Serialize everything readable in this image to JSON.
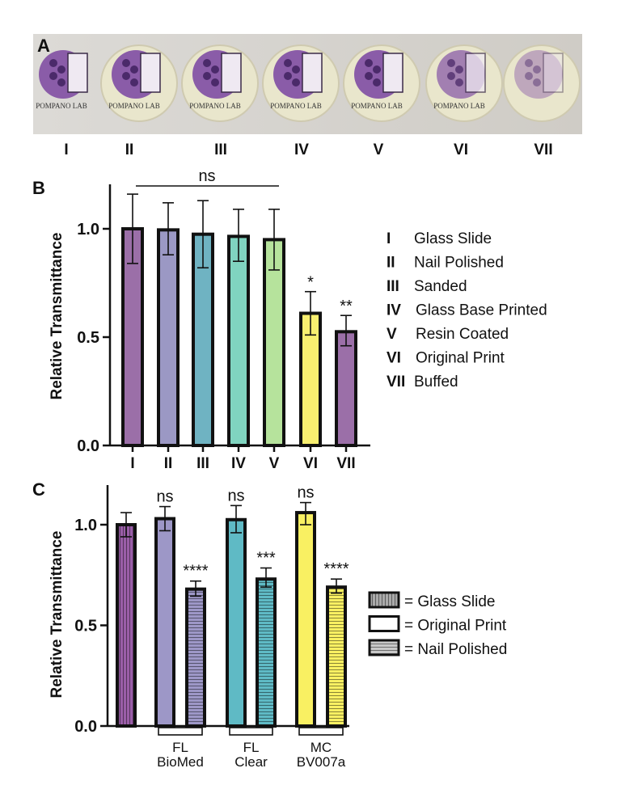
{
  "panel_a": {
    "label": "A",
    "photo_text": "POMPANO LAB",
    "samples": [
      "I",
      "II",
      "III",
      "IV",
      "V",
      "VI",
      "VII"
    ]
  },
  "chart_data": [
    {
      "panel": "B",
      "type": "bar",
      "ylabel": "Relative Transmittance",
      "ylim": [
        0,
        1.2
      ],
      "yticks": [
        "0.0",
        "0.5",
        "1.0"
      ],
      "categories": [
        "I",
        "II",
        "III",
        "IV",
        "V",
        "VI",
        "VII"
      ],
      "values": [
        1.0,
        0.995,
        0.975,
        0.965,
        0.95,
        0.61,
        0.525
      ],
      "err_low": [
        0.84,
        0.88,
        0.82,
        0.85,
        0.81,
        0.51,
        0.46
      ],
      "err_high": [
        1.16,
        1.12,
        1.13,
        1.09,
        1.09,
        0.71,
        0.6
      ],
      "colors": [
        "#9b6fa8",
        "#9b98c4",
        "#6fb3c2",
        "#80d4c0",
        "#b6e39c",
        "#f8ef70",
        "#9b6fa8"
      ],
      "annotations": {
        "bracket": "ns",
        "per_bar": [
          "",
          "",
          "",
          "",
          "",
          "*",
          "**"
        ]
      },
      "legend": [
        {
          "key": "I",
          "label": "Glass Slide"
        },
        {
          "key": "II",
          "label": "Nail Polished"
        },
        {
          "key": "III",
          "label": "Sanded"
        },
        {
          "key": "IV",
          "label": "Glass Base Printed"
        },
        {
          "key": "V",
          "label": "Resin Coated"
        },
        {
          "key": "VI",
          "label": "Original Print"
        },
        {
          "key": "VII",
          "label": "Buffed"
        }
      ],
      "legend_position": "right"
    },
    {
      "panel": "C",
      "type": "bar",
      "ylabel": "Relative Transmittance",
      "ylim": [
        0,
        1.2
      ],
      "yticks": [
        "0.0",
        "0.5",
        "1.0"
      ],
      "bars": [
        {
          "group": "Glass Slide",
          "kind": "glass",
          "value": 1.0,
          "err": [
            0.94,
            1.06
          ],
          "color": "#9a5ea8",
          "sig": ""
        },
        {
          "group": "FL BioMed",
          "kind": "original",
          "value": 1.03,
          "err": [
            0.97,
            1.09
          ],
          "color": "#9d97c7",
          "sig": "ns"
        },
        {
          "group": "FL BioMed",
          "kind": "nail",
          "value": 0.68,
          "err": [
            0.645,
            0.72
          ],
          "color": "#9d97c7",
          "sig": "****"
        },
        {
          "group": "FL Clear",
          "kind": "original",
          "value": 1.025,
          "err": [
            0.96,
            1.095
          ],
          "color": "#5fbac5",
          "sig": "ns"
        },
        {
          "group": "FL Clear",
          "kind": "nail",
          "value": 0.73,
          "err": [
            0.69,
            0.785
          ],
          "color": "#5fbac5",
          "sig": "***"
        },
        {
          "group": "MC BV007a",
          "kind": "original",
          "value": 1.06,
          "err": [
            1.0,
            1.11
          ],
          "color": "#f9f062",
          "sig": "ns"
        },
        {
          "group": "MC BV007a",
          "kind": "nail",
          "value": 0.69,
          "err": [
            0.66,
            0.73
          ],
          "color": "#f9f062",
          "sig": "****"
        }
      ],
      "groups": [
        {
          "line1": "FL",
          "line2": "BioMed"
        },
        {
          "line1": "FL",
          "line2": "Clear"
        },
        {
          "line1": "MC",
          "line2": "BV007a"
        }
      ],
      "legend": [
        {
          "kind": "glass",
          "label": "= Glass Slide"
        },
        {
          "kind": "original",
          "label": "= Original Print"
        },
        {
          "kind": "nail",
          "label": "= Nail Polished"
        }
      ],
      "legend_position": "right"
    }
  ]
}
